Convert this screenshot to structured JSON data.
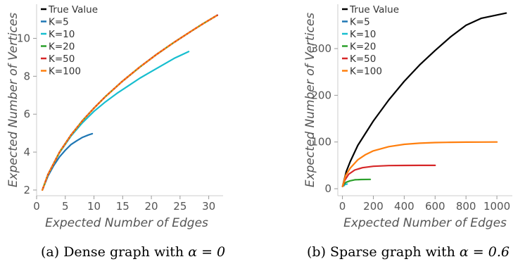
{
  "chart_data": [
    {
      "type": "line",
      "caption_prefix": "(a) Dense graph with ",
      "caption_math": "α = 0",
      "xlabel": "Expected Number of Edges",
      "ylabel": "Expected Number of Vertices",
      "xlim": [
        0,
        32.5
      ],
      "ylim": [
        1.7,
        11.8
      ],
      "xticks": [
        0,
        5,
        10,
        15,
        20,
        25,
        30
      ],
      "yticks": [
        2,
        4,
        6,
        8,
        10
      ],
      "legend": "top-left",
      "grid": false,
      "series": [
        {
          "name": "True Value",
          "color": "#000000",
          "dash": "solid",
          "x": [
            1,
            2,
            4,
            6,
            8,
            10,
            12,
            15,
            18,
            21,
            24,
            27,
            29,
            31.5
          ],
          "y": [
            2.0,
            2.83,
            4.0,
            4.9,
            5.66,
            6.32,
            6.93,
            7.75,
            8.49,
            9.17,
            9.8,
            10.39,
            10.77,
            11.22
          ]
        },
        {
          "name": "K=5",
          "color": "#1f77b4",
          "dash": "solid",
          "x": [
            1,
            2,
            3,
            4,
            5,
            6,
            7,
            8,
            9,
            9.7
          ],
          "y": [
            2.0,
            2.75,
            3.3,
            3.75,
            4.1,
            4.4,
            4.6,
            4.78,
            4.9,
            4.97
          ]
        },
        {
          "name": "K=10",
          "color": "#17becf",
          "dash": "solid",
          "x": [
            1,
            2,
            4,
            6,
            8,
            10,
            12,
            14,
            16,
            18,
            20,
            22,
            24,
            26.5
          ],
          "y": [
            2.0,
            2.82,
            3.97,
            4.85,
            5.55,
            6.15,
            6.65,
            7.1,
            7.5,
            7.9,
            8.25,
            8.6,
            8.95,
            9.3
          ]
        },
        {
          "name": "K=20",
          "color": "#2ca02c",
          "dash": "solid",
          "x": [
            1,
            2,
            4,
            6,
            8,
            10,
            12,
            15,
            18,
            21,
            24,
            27,
            29,
            31.5
          ],
          "y": [
            2.0,
            2.83,
            4.0,
            4.9,
            5.66,
            6.32,
            6.93,
            7.75,
            8.49,
            9.17,
            9.8,
            10.39,
            10.77,
            11.22
          ]
        },
        {
          "name": "K=50",
          "color": "#d62728",
          "dash": "dashed",
          "x": [
            1,
            2,
            4,
            6,
            8,
            10,
            12,
            15,
            18,
            21,
            24,
            27,
            29,
            31.5
          ],
          "y": [
            2.0,
            2.83,
            4.0,
            4.9,
            5.66,
            6.32,
            6.93,
            7.75,
            8.49,
            9.17,
            9.8,
            10.39,
            10.77,
            11.22
          ]
        },
        {
          "name": "K=100",
          "color": "#ff7f0e",
          "dash": "dotted",
          "x": [
            1,
            2,
            4,
            6,
            8,
            10,
            12,
            15,
            18,
            21,
            24,
            27,
            29,
            31.5
          ],
          "y": [
            2.0,
            2.83,
            4.0,
            4.9,
            5.66,
            6.32,
            6.93,
            7.75,
            8.49,
            9.17,
            9.8,
            10.39,
            10.77,
            11.22
          ]
        }
      ]
    },
    {
      "type": "line",
      "caption_prefix": "(b) Sparse graph with ",
      "caption_math": "α = 0.6",
      "xlabel": "Expected Number of Edges",
      "ylabel": "Expected Number of Vertices",
      "xlim": [
        -30,
        1100
      ],
      "ylim": [
        -15,
        395
      ],
      "xticks": [
        0,
        200,
        400,
        600,
        800,
        1000
      ],
      "yticks": [
        0,
        100,
        200,
        300
      ],
      "legend": "top-left",
      "grid": false,
      "series": [
        {
          "name": "True Value",
          "color": "#000000",
          "dash": "solid",
          "x": [
            1,
            25,
            50,
            100,
            200,
            300,
            400,
            500,
            600,
            700,
            800,
            900,
            1000,
            1060
          ],
          "y": [
            5,
            37,
            58,
            93,
            145,
            190,
            230,
            265,
            296,
            325,
            350,
            365,
            372,
            376
          ]
        },
        {
          "name": "K=5",
          "color": "#1f77b4",
          "dash": "solid",
          "x": [
            1,
            3,
            6,
            9,
            12
          ],
          "y": [
            5,
            5.6,
            6.2,
            6.6,
            7
          ]
        },
        {
          "name": "K=10",
          "color": "#17becf",
          "dash": "solid",
          "x": [
            1,
            8,
            16,
            24,
            30
          ],
          "y": [
            5,
            7.5,
            9,
            9.6,
            10
          ]
        },
        {
          "name": "K=20",
          "color": "#2ca02c",
          "dash": "solid",
          "x": [
            1,
            10,
            25,
            50,
            80,
            120,
            180
          ],
          "y": [
            5,
            10,
            14,
            17,
            19,
            19.7,
            20
          ]
        },
        {
          "name": "K=50",
          "color": "#d62728",
          "dash": "solid",
          "x": [
            1,
            15,
            40,
            80,
            130,
            200,
            300,
            400,
            500,
            600
          ],
          "y": [
            5,
            18,
            31,
            40,
            45,
            48,
            49.5,
            49.8,
            49.9,
            50
          ]
        },
        {
          "name": "K=100",
          "color": "#ff7f0e",
          "dash": "solid",
          "x": [
            1,
            20,
            50,
            100,
            150,
            200,
            300,
            400,
            500,
            600,
            700,
            800,
            900,
            1000
          ],
          "y": [
            5,
            28,
            44,
            62,
            73,
            81,
            90,
            95,
            97.5,
            98.8,
            99.4,
            99.7,
            99.9,
            100
          ]
        }
      ]
    }
  ]
}
